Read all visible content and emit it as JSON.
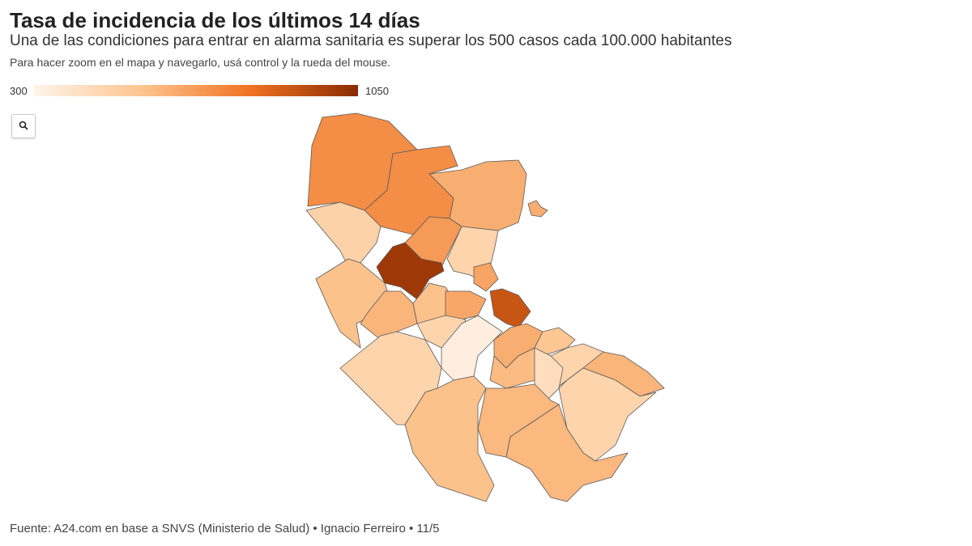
{
  "header": {
    "title": "Tasa de incidencia de los últimos 14 días",
    "subtitle": "Una de las condiciones para entrar en alarma sanitaria es superar los 500 casos cada 100.000 habitantes",
    "note": "Para hacer zoom en el mapa y navegarlo, usá control y la rueda del mouse."
  },
  "legend": {
    "min": 300,
    "max": 1050
  },
  "map": {
    "region_values": [
      720,
      720,
      620,
      620,
      480,
      680,
      1000,
      470,
      560,
      650,
      900,
      600,
      560,
      640,
      470,
      330,
      470,
      620,
      540,
      580,
      470,
      420,
      600,
      470,
      560,
      590,
      590
    ]
  },
  "footer": {
    "source": "Fuente: A24.com en base a SNVS (Ministerio de Salud) • Ignacio Ferreiro • 11/5"
  }
}
